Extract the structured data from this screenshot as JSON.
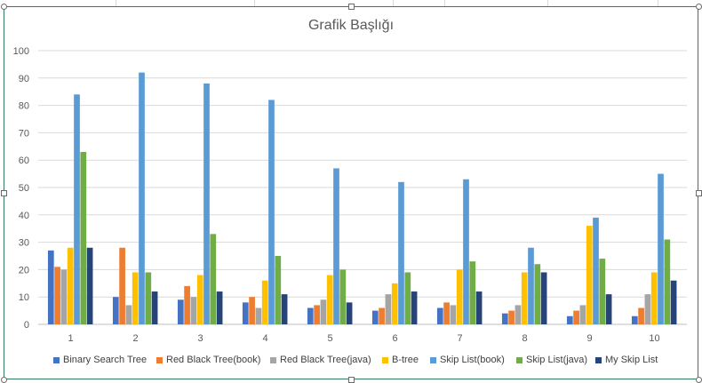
{
  "chart_data": {
    "type": "bar",
    "title": "Grafik Başlığı",
    "xlabel": "",
    "ylabel": "",
    "ylim": [
      0,
      100
    ],
    "yticks": [
      0,
      10,
      20,
      30,
      40,
      50,
      60,
      70,
      80,
      90,
      100
    ],
    "categories": [
      "1",
      "2",
      "3",
      "4",
      "5",
      "6",
      "7",
      "8",
      "9",
      "10"
    ],
    "grid": true,
    "legend_position": "bottom",
    "series": [
      {
        "name": "Binary Search Tree",
        "color": "#4472c4",
        "values": [
          27,
          10,
          9,
          8,
          6,
          5,
          6,
          4,
          3,
          3
        ]
      },
      {
        "name": "Red Black Tree(book)",
        "color": "#ed7d31",
        "values": [
          21,
          28,
          14,
          10,
          7,
          6,
          8,
          5,
          5,
          6
        ]
      },
      {
        "name": "Red Black Tree(java)",
        "color": "#a5a5a5",
        "values": [
          20,
          7,
          10,
          6,
          9,
          11,
          7,
          7,
          7,
          11
        ]
      },
      {
        "name": "B-tree",
        "color": "#ffc000",
        "values": [
          28,
          19,
          18,
          16,
          18,
          15,
          20,
          19,
          36,
          19
        ]
      },
      {
        "name": "Skip List(book)",
        "color": "#5b9bd5",
        "values": [
          84,
          92,
          88,
          82,
          57,
          52,
          53,
          28,
          39,
          55
        ]
      },
      {
        "name": "Skip List(java)",
        "color": "#70ad47",
        "values": [
          63,
          19,
          33,
          25,
          20,
          19,
          23,
          22,
          24,
          31
        ]
      },
      {
        "name": "My Skip List",
        "color": "#264478",
        "values": [
          28,
          12,
          12,
          11,
          8,
          12,
          12,
          19,
          11,
          16
        ]
      }
    ]
  }
}
